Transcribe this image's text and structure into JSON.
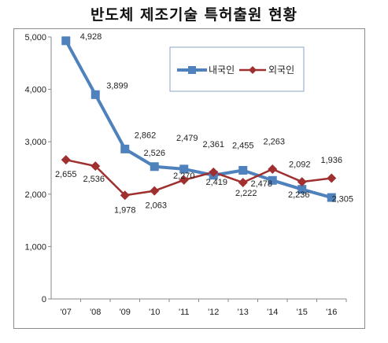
{
  "title": "반도체 제조기술 특허출원 현황",
  "chart_data": {
    "type": "line",
    "categories": [
      "'07",
      "'08",
      "'09",
      "'10",
      "'11",
      "'12",
      "'13",
      "'14",
      "'15",
      "'16"
    ],
    "ylim": [
      0,
      5000
    ],
    "yticks": [
      "0",
      "1,000",
      "2,000",
      "3,000",
      "4,000",
      "5,000"
    ],
    "grid": false,
    "legend_position": "top-right",
    "series": [
      {
        "name": "내국인",
        "color": "#4f81bd",
        "marker": "square",
        "values": [
          4928,
          3899,
          2862,
          2526,
          2479,
          2361,
          2455,
          2263,
          2092,
          1936
        ],
        "labels": [
          "4,928",
          "3,899",
          "2,862",
          "2,526",
          "2,479",
          "2,361",
          "2,455",
          "2,263",
          "2,092",
          "1,936"
        ]
      },
      {
        "name": "외국인",
        "color": "#a0302f",
        "marker": "diamond",
        "values": [
          2655,
          2536,
          1978,
          2063,
          2270,
          2419,
          2222,
          2478,
          2236,
          2305
        ],
        "labels": [
          "2,655",
          "2,536",
          "1,978",
          "2,063",
          "2,270",
          "2,419",
          "2,222",
          "2,478",
          "2,236",
          "2,305"
        ]
      }
    ]
  }
}
